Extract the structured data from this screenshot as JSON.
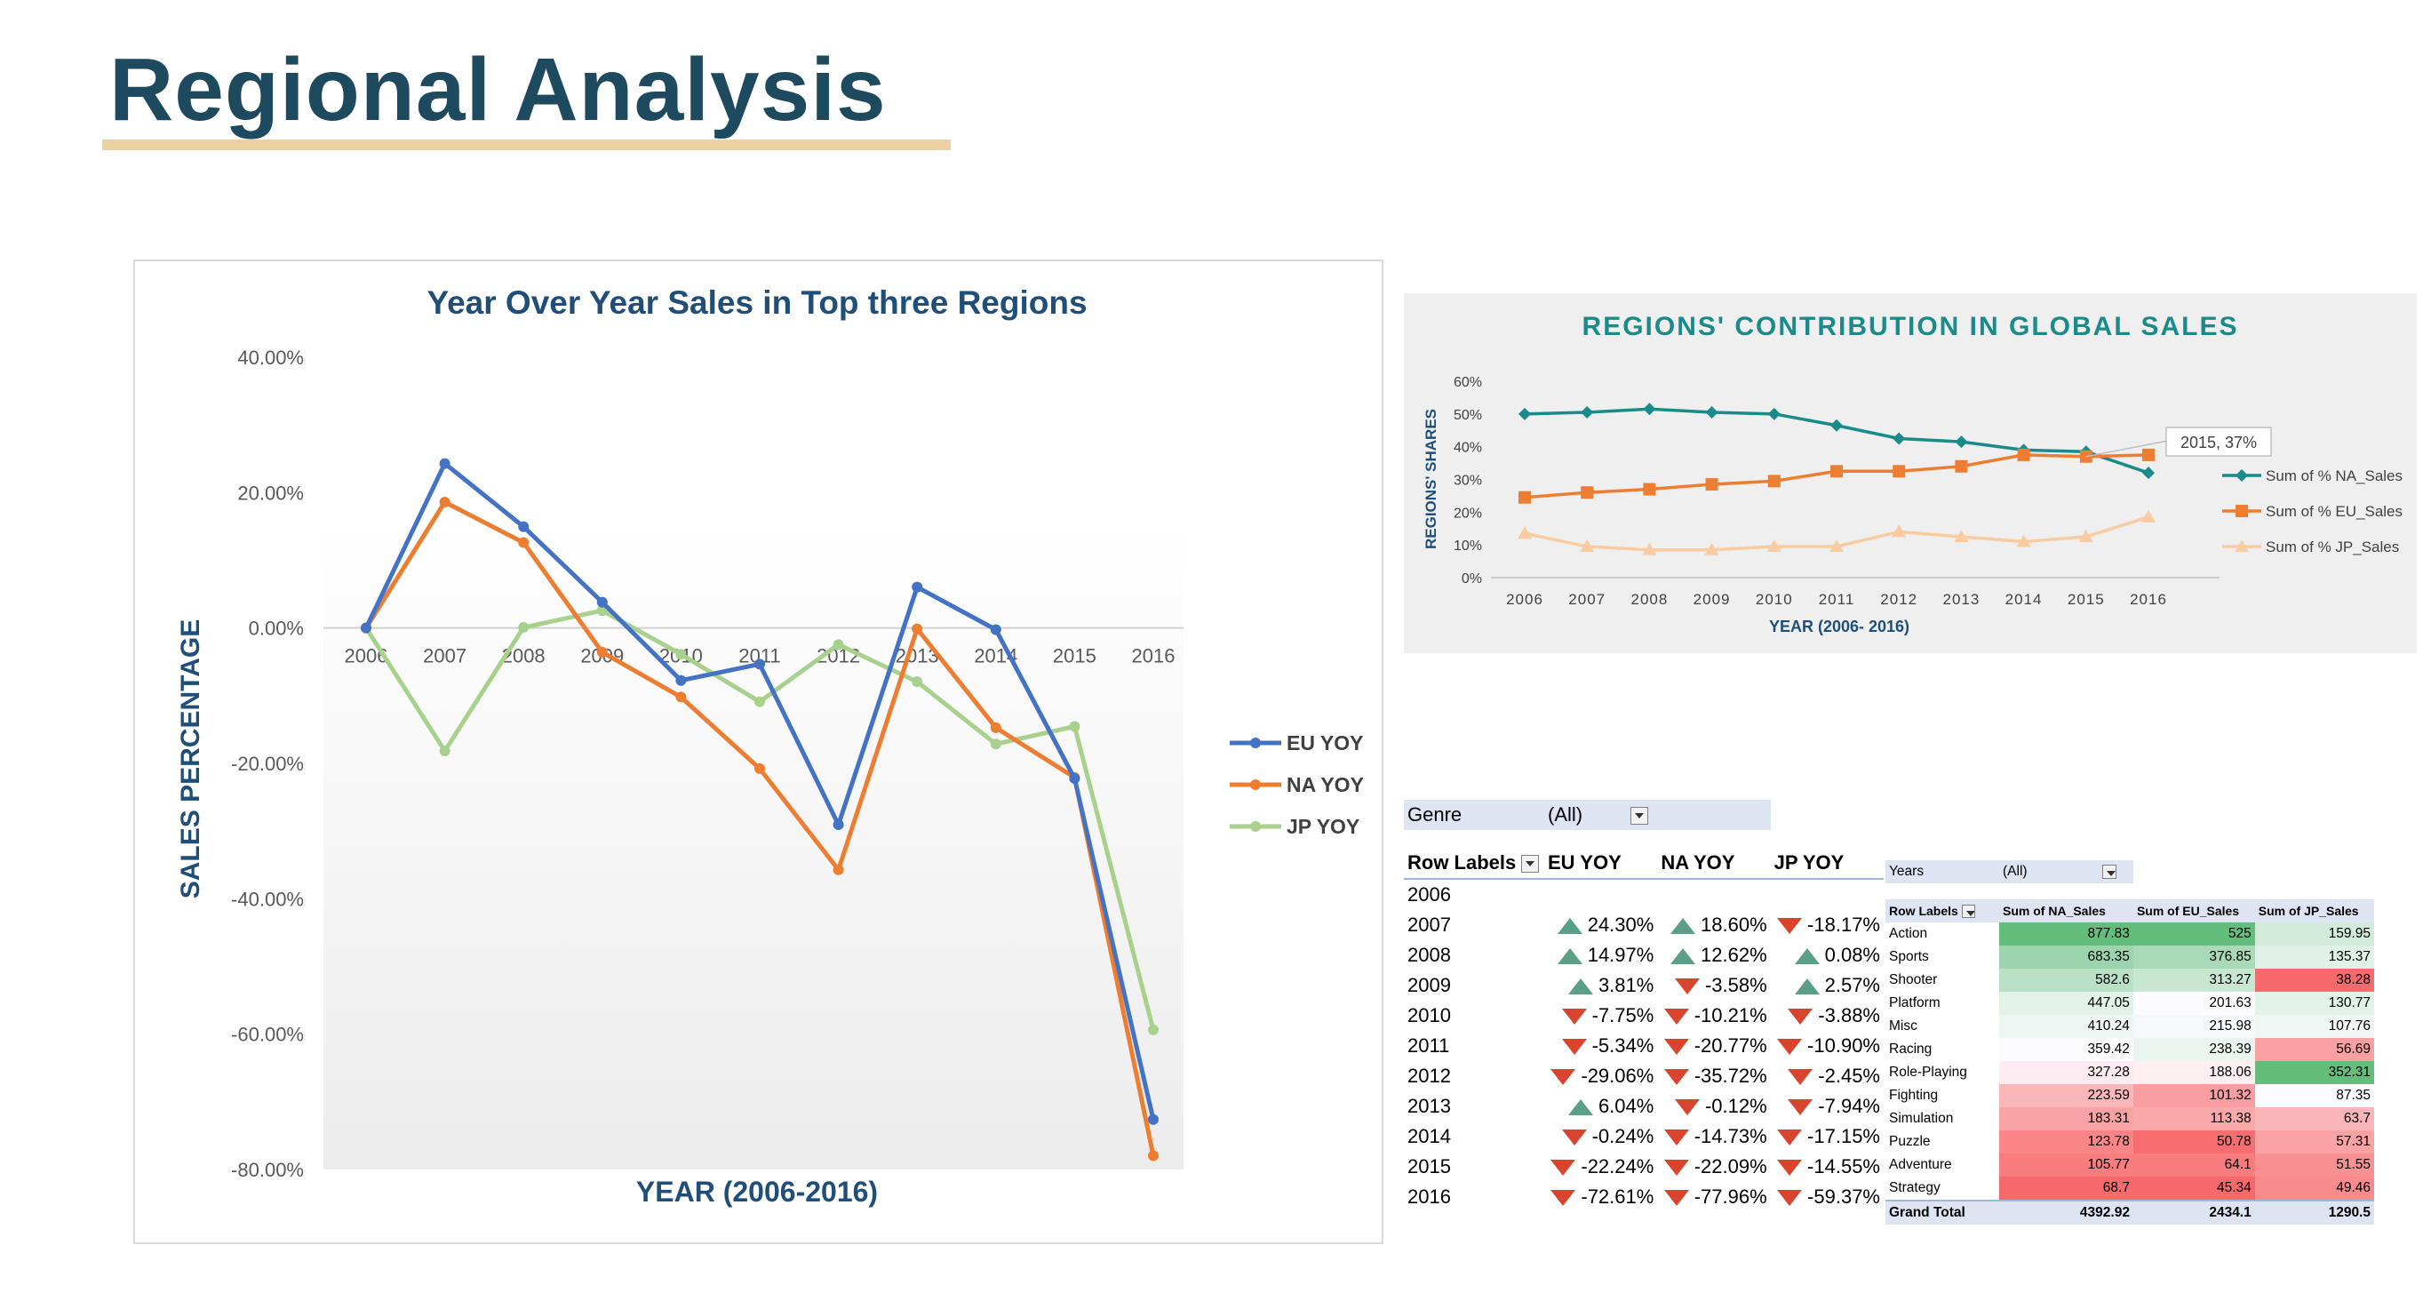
{
  "page": {
    "title": "Regional Analysis"
  },
  "colors": {
    "eu": "#4472c4",
    "na": "#ed7d31",
    "jp": "#a9d18e",
    "title_blue": "#1f4e79",
    "teal": "#1a8a8a",
    "orange": "#ed7d31",
    "peach": "#f8cba0"
  },
  "chart_data": [
    {
      "type": "line",
      "title": "Year Over Year Sales in Top three Regions",
      "xlabel": "YEAR (2006-2016)",
      "ylabel": "SALES PERCENTAGE",
      "categories": [
        "2006",
        "2007",
        "2008",
        "2009",
        "2010",
        "2011",
        "2012",
        "2013",
        "2014",
        "2015",
        "2016"
      ],
      "ylim": [
        -80,
        40
      ],
      "yticks": [
        "40.00%",
        "20.00%",
        "0.00%",
        "-20.00%",
        "-40.00%",
        "-60.00%",
        "-80.00%"
      ],
      "legend_position": "right",
      "series": [
        {
          "name": "EU YOY",
          "values": [
            0,
            24.3,
            14.97,
            3.81,
            -7.75,
            -5.34,
            -29.06,
            6.04,
            -0.24,
            -22.24,
            -72.61
          ]
        },
        {
          "name": "NA YOY",
          "values": [
            0,
            18.6,
            12.62,
            -3.58,
            -10.21,
            -20.77,
            -35.72,
            -0.12,
            -14.73,
            -22.09,
            -77.96
          ]
        },
        {
          "name": "JP YOY",
          "values": [
            0,
            -18.17,
            0.08,
            2.57,
            -3.88,
            -10.9,
            -2.45,
            -7.94,
            -17.15,
            -14.55,
            -59.37
          ]
        }
      ]
    },
    {
      "type": "line",
      "title": "REGIONS' CONTRIBUTION IN GLOBAL SALES",
      "xlabel": "YEAR (2006- 2016)",
      "ylabel": "REGIONS' SHARES",
      "categories": [
        "2006",
        "2007",
        "2008",
        "2009",
        "2010",
        "2011",
        "2012",
        "2013",
        "2014",
        "2015",
        "2016"
      ],
      "ylim": [
        0,
        60
      ],
      "yticks": [
        "60%",
        "50%",
        "40%",
        "30%",
        "20%",
        "10%",
        "0%"
      ],
      "legend_position": "right",
      "annotation": "2015, 37%",
      "series": [
        {
          "name": "Sum of % NA_Sales",
          "values": [
            50,
            50.5,
            51.5,
            50.5,
            50,
            46.5,
            42.5,
            41.5,
            39,
            38.5,
            32
          ]
        },
        {
          "name": "Sum of % EU_Sales",
          "values": [
            24.5,
            26,
            27,
            28.5,
            29.5,
            32.5,
            32.5,
            34,
            37.5,
            37,
            37.5
          ]
        },
        {
          "name": "Sum of % JP_Sales",
          "values": [
            13.5,
            9.5,
            8.5,
            8.5,
            9.5,
            9.5,
            14,
            12.5,
            11,
            12.5,
            18.5
          ]
        }
      ]
    },
    {
      "type": "table",
      "filter_label": "Genre",
      "filter_value": "(All)",
      "headers": [
        "Row Labels",
        "EU YOY",
        "NA YOY",
        "JP YOY"
      ],
      "rows": [
        {
          "year": "2006",
          "eu": "",
          "na": "",
          "jp": "",
          "eu_dir": "",
          "na_dir": "",
          "jp_dir": ""
        },
        {
          "year": "2007",
          "eu": "24.30%",
          "na": "18.60%",
          "jp": "-18.17%",
          "eu_dir": "up",
          "na_dir": "up",
          "jp_dir": "down"
        },
        {
          "year": "2008",
          "eu": "14.97%",
          "na": "12.62%",
          "jp": "0.08%",
          "eu_dir": "up",
          "na_dir": "up",
          "jp_dir": "up"
        },
        {
          "year": "2009",
          "eu": "3.81%",
          "na": "-3.58%",
          "jp": "2.57%",
          "eu_dir": "up",
          "na_dir": "down",
          "jp_dir": "up"
        },
        {
          "year": "2010",
          "eu": "-7.75%",
          "na": "-10.21%",
          "jp": "-3.88%",
          "eu_dir": "down",
          "na_dir": "down",
          "jp_dir": "down"
        },
        {
          "year": "2011",
          "eu": "-5.34%",
          "na": "-20.77%",
          "jp": "-10.90%",
          "eu_dir": "down",
          "na_dir": "down",
          "jp_dir": "down"
        },
        {
          "year": "2012",
          "eu": "-29.06%",
          "na": "-35.72%",
          "jp": "-2.45%",
          "eu_dir": "down",
          "na_dir": "down",
          "jp_dir": "down"
        },
        {
          "year": "2013",
          "eu": "6.04%",
          "na": "-0.12%",
          "jp": "-7.94%",
          "eu_dir": "up",
          "na_dir": "down",
          "jp_dir": "down"
        },
        {
          "year": "2014",
          "eu": "-0.24%",
          "na": "-14.73%",
          "jp": "-17.15%",
          "eu_dir": "down",
          "na_dir": "down",
          "jp_dir": "down"
        },
        {
          "year": "2015",
          "eu": "-22.24%",
          "na": "-22.09%",
          "jp": "-14.55%",
          "eu_dir": "down",
          "na_dir": "down",
          "jp_dir": "down"
        },
        {
          "year": "2016",
          "eu": "-72.61%",
          "na": "-77.96%",
          "jp": "-59.37%",
          "eu_dir": "down",
          "na_dir": "down",
          "jp_dir": "down"
        }
      ]
    },
    {
      "type": "table",
      "filter_label": "Years",
      "filter_value": "(All)",
      "headers": [
        "Row Labels",
        "Sum of NA_Sales",
        "Sum of EU_Sales",
        "Sum of JP_Sales"
      ],
      "rows": [
        {
          "genre": "Action",
          "na": 877.83,
          "eu": 525,
          "jp": 159.95
        },
        {
          "genre": "Sports",
          "na": 683.35,
          "eu": 376.85,
          "jp": 135.37
        },
        {
          "genre": "Shooter",
          "na": 582.6,
          "eu": 313.27,
          "jp": 38.28
        },
        {
          "genre": "Platform",
          "na": 447.05,
          "eu": 201.63,
          "jp": 130.77
        },
        {
          "genre": "Misc",
          "na": 410.24,
          "eu": 215.98,
          "jp": 107.76
        },
        {
          "genre": "Racing",
          "na": 359.42,
          "eu": 238.39,
          "jp": 56.69
        },
        {
          "genre": "Role-Playing",
          "na": 327.28,
          "eu": 188.06,
          "jp": 352.31
        },
        {
          "genre": "Fighting",
          "na": 223.59,
          "eu": 101.32,
          "jp": 87.35
        },
        {
          "genre": "Simulation",
          "na": 183.31,
          "eu": 113.38,
          "jp": 63.7
        },
        {
          "genre": "Puzzle",
          "na": 123.78,
          "eu": 50.78,
          "jp": 57.31
        },
        {
          "genre": "Adventure",
          "na": 105.77,
          "eu": 64.1,
          "jp": 51.55
        },
        {
          "genre": "Strategy",
          "na": 68.7,
          "eu": 45.34,
          "jp": 49.46
        }
      ],
      "total": {
        "genre": "Grand Total",
        "na": 4392.92,
        "eu": 2434.1,
        "jp": 1290.5
      }
    }
  ]
}
